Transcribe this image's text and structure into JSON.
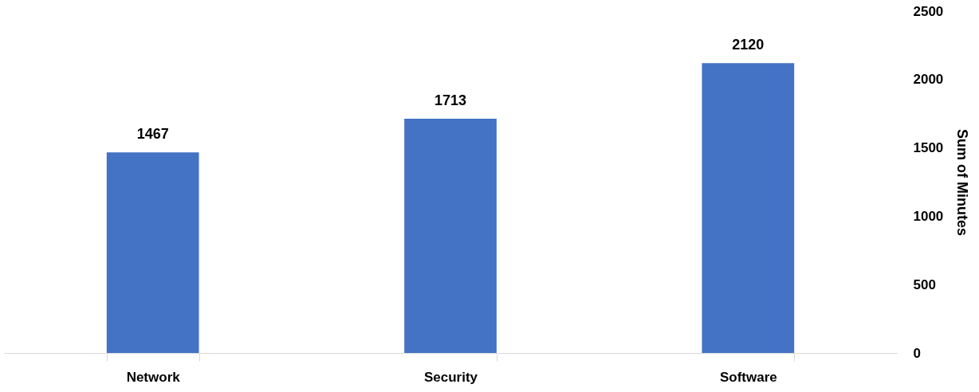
{
  "chart_data": {
    "type": "bar",
    "ylabel": "Sum of Minutes",
    "categories": [
      "Network",
      "Security",
      "Software"
    ],
    "values": [
      1467,
      1713,
      2120
    ],
    "color": "#4472c4",
    "ylim": [
      0,
      2500
    ],
    "yticks": [
      0,
      500,
      1000,
      1500,
      2000,
      2500
    ],
    "grid": false,
    "data_labels": true
  }
}
